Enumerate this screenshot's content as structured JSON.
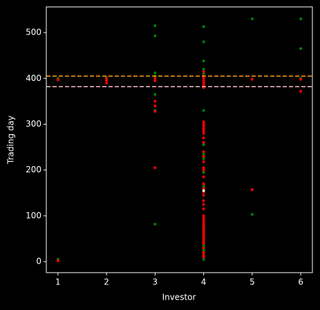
{
  "chart_data": {
    "type": "scatter",
    "x_label": "Investor",
    "y_label": "Trading day",
    "xlim": [
      0.76,
      6.24
    ],
    "ylim": [
      -24,
      556
    ],
    "xticks": [
      1,
      2,
      3,
      4,
      5,
      6
    ],
    "yticks": [
      0,
      100,
      200,
      300,
      400,
      500
    ],
    "background": "#000000",
    "axis_color": "#ffffff",
    "hlines": [
      {
        "value": 405,
        "color": "#ff9f1a"
      },
      {
        "value": 382,
        "color": "#ffc0cb"
      }
    ],
    "series": [
      {
        "color": "#008000",
        "x": [
          1,
          1,
          2,
          2,
          3,
          3,
          3,
          3,
          3,
          3,
          3,
          3,
          4,
          4,
          4,
          4,
          4,
          4,
          4,
          4,
          4,
          4,
          4,
          4,
          4,
          4,
          4,
          4,
          4,
          4,
          4,
          4,
          4,
          4,
          4,
          4,
          4,
          4,
          4,
          4,
          4,
          5,
          5,
          6,
          6,
          6
        ],
        "values": [
          400,
          5,
          398,
          402,
          515,
          493,
          412,
          405,
          365,
          340,
          330,
          82,
          513,
          480,
          438,
          420,
          410,
          400,
          330,
          255,
          235,
          230,
          225,
          195,
          165,
          145,
          78,
          70,
          60,
          50,
          45,
          40,
          35,
          30,
          25,
          20,
          15,
          10,
          5,
          290,
          185,
          530,
          103,
          530,
          465,
          400
        ]
      },
      {
        "color": "#ff0000",
        "x": [
          1,
          1,
          2,
          2,
          2,
          3,
          3,
          3,
          3,
          3,
          3,
          4,
          4,
          4,
          4,
          4,
          4,
          4,
          4,
          4,
          4,
          4,
          4,
          4,
          4,
          4,
          4,
          4,
          4,
          4,
          4,
          4,
          4,
          4,
          4,
          4,
          4,
          4,
          4,
          4,
          4,
          4,
          4,
          4,
          4,
          4,
          4,
          4,
          4,
          4,
          4,
          4,
          4,
          4,
          4,
          4,
          5,
          5,
          6,
          6
        ],
        "values": [
          397,
          2,
          390,
          395,
          400,
          400,
          395,
          350,
          340,
          328,
          205,
          415,
          405,
          400,
          395,
          390,
          385,
          380,
          305,
          300,
          295,
          290,
          285,
          280,
          270,
          260,
          240,
          230,
          218,
          205,
          200,
          185,
          170,
          160,
          152,
          145,
          133,
          125,
          115,
          100,
          95,
          90,
          85,
          80,
          75,
          70,
          65,
          60,
          55,
          50,
          45,
          40,
          30,
          20,
          15,
          10,
          398,
          157,
          398,
          372
        ]
      },
      {
        "color": "#ffffff",
        "x": [
          4
        ],
        "values": [
          155
        ]
      }
    ]
  }
}
